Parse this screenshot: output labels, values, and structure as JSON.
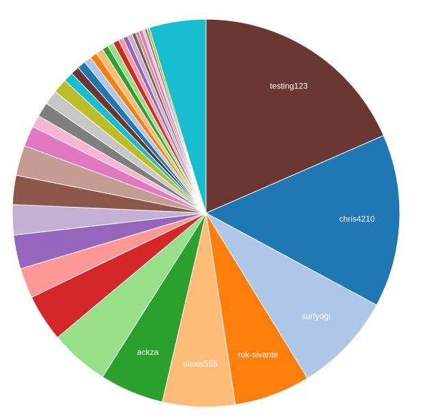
{
  "chart_data": {
    "type": "pie",
    "categories": [
      "testing123",
      "chris4210",
      "surfyogi",
      "rok-sivante",
      "alexis555",
      "ackza",
      null,
      null,
      null,
      null,
      null,
      null,
      null,
      null,
      null,
      null,
      null,
      null,
      null,
      null,
      null,
      null,
      null,
      null,
      null,
      null,
      null,
      null,
      null,
      null,
      null,
      null,
      null,
      null,
      null,
      null,
      null
    ],
    "values": [
      18.3,
      14.3,
      8.3,
      6.3,
      6.0,
      5.3,
      4.9,
      3.9,
      2.5,
      2.8,
      2.5,
      2.4,
      2.5,
      1.7,
      1.0,
      1.2,
      1.2,
      1.2,
      0.8,
      0.7,
      0.7,
      0.6,
      0.6,
      0.6,
      0.5,
      0.5,
      0.5,
      0.4,
      0.4,
      0.4,
      0.3,
      0.3,
      0.3,
      0.2,
      0.2,
      0.2,
      4.7
    ],
    "colors": [
      "#6b3732",
      "#1f77b4",
      "#aec7e8",
      "#ff7f0e",
      "#ffbb78",
      "#2ca02c",
      "#98df8a",
      "#d62728",
      "#ff9896",
      "#9467bd",
      "#c5b0d5",
      "#8c564b",
      "#c49c94",
      "#e377c2",
      "#f7b6d2",
      "#7f7f7f",
      "#c7c7c7",
      "#bcbd22",
      "#17becf",
      "#6b3732",
      "#1f77b4",
      "#aec7e8",
      "#ff7f0e",
      "#ffbb78",
      "#2ca02c",
      "#98df8a",
      "#d62728",
      "#ff9896",
      "#9467bd",
      "#c5b0d5",
      "#8c564b",
      "#c49c94",
      "#e377c2",
      "#f7b6d2",
      "#7f7f7f",
      "#bcbd22",
      "#17becf"
    ]
  }
}
